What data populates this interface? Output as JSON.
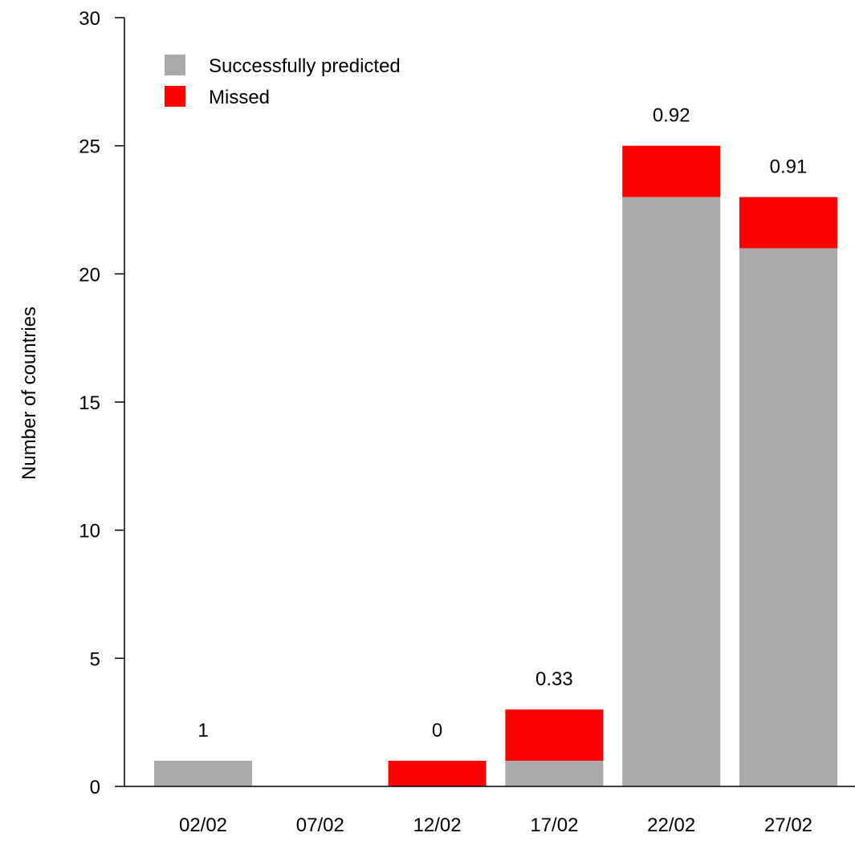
{
  "chart_data": {
    "type": "bar",
    "stacked": true,
    "categories": [
      "02/02",
      "07/02",
      "12/02",
      "17/02",
      "22/02",
      "27/02"
    ],
    "series": [
      {
        "name": "Successfully predicted",
        "color": "#aaaaaa",
        "values": [
          1,
          0,
          0,
          1,
          23,
          21
        ]
      },
      {
        "name": "Missed",
        "color": "#ff0000",
        "values": [
          0,
          0,
          1,
          2,
          2,
          2
        ]
      }
    ],
    "bar_labels": [
      "1",
      "",
      "0",
      "0.33",
      "0.92",
      "0.91"
    ],
    "title": "",
    "xlabel": "",
    "ylabel": "Number of countries",
    "ylim": [
      0,
      30
    ],
    "yticks": [
      0,
      5,
      10,
      15,
      20,
      25,
      30
    ],
    "grid": false,
    "legend_position": "top-left"
  }
}
